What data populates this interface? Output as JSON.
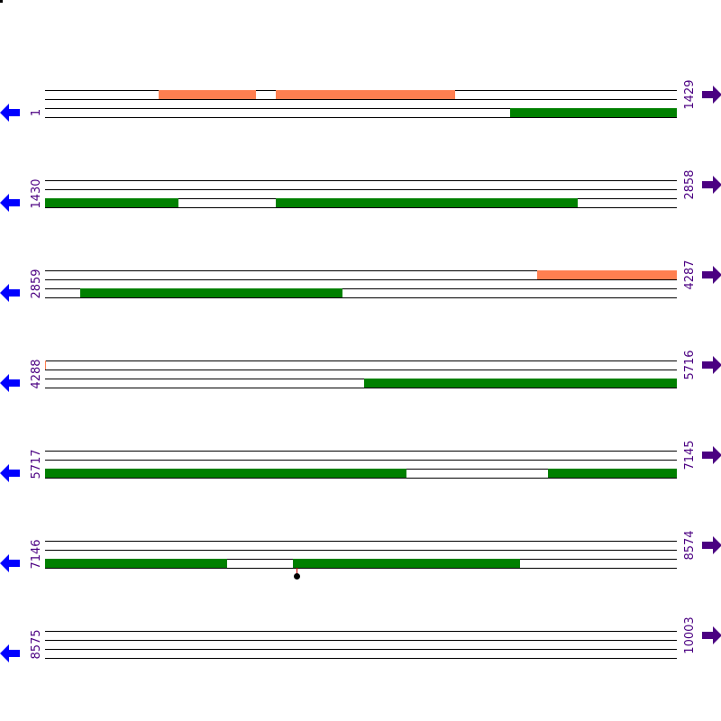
{
  "bp_per_row": 1429,
  "colors": {
    "top_feature": "#ff7f50",
    "bottom_feature": "#008000",
    "left_arrow": "#0000ff",
    "right_arrow": "#4b0082",
    "label": "#4b0082"
  },
  "rows": [
    {
      "start": "1",
      "end": "1429",
      "top": [
        [
          257,
          477
        ],
        [
          522,
          927
        ]
      ],
      "bottom": [
        [
          1052,
          1429
        ]
      ]
    },
    {
      "start": "1430",
      "end": "2858",
      "top": [],
      "bottom": [
        [
          1430,
          1730
        ],
        [
          1952,
          2633
        ]
      ]
    },
    {
      "start": "2859",
      "end": "4287",
      "top": [
        [
          3972,
          4287
        ]
      ],
      "bottom": [
        [
          2939,
          3530
        ]
      ]
    },
    {
      "start": "4288",
      "end": "5716",
      "top": [
        [
          4288,
          4288
        ]
      ],
      "bottom": [
        [
          5010,
          5716
        ]
      ]
    },
    {
      "start": "5717",
      "end": "7145",
      "top": [],
      "bottom": [
        [
          5717,
          6534
        ],
        [
          6854,
          7145
        ]
      ]
    },
    {
      "start": "7146",
      "end": "8574",
      "top": [],
      "bottom": [
        [
          7146,
          7556
        ],
        [
          7707,
          8220
        ]
      ],
      "markers": [
        7715
      ]
    },
    {
      "start": "8575",
      "end": "10003",
      "top": [],
      "bottom": []
    }
  ]
}
